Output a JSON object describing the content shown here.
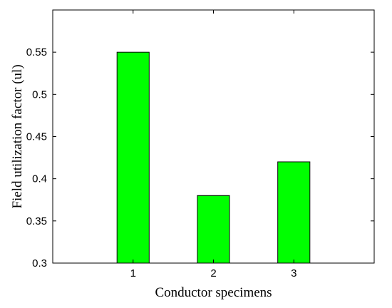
{
  "chart_data": {
    "type": "bar",
    "categories": [
      "1",
      "2",
      "3"
    ],
    "values": [
      0.55,
      0.38,
      0.42
    ],
    "title": "",
    "xlabel": "Conductor specimens",
    "ylabel": "Field utilization factor (ul)",
    "ylim": [
      0.3,
      0.6
    ],
    "yticks": [
      0.3,
      0.35,
      0.4,
      0.45,
      0.5,
      0.55
    ],
    "ytick_labels": [
      "0.3",
      "0.35",
      "0.4",
      "0.45",
      "0.5",
      "0.55"
    ],
    "grid": false,
    "legend": "none",
    "bar_color": "#00ff00",
    "bar_edge_color": "#000000"
  }
}
